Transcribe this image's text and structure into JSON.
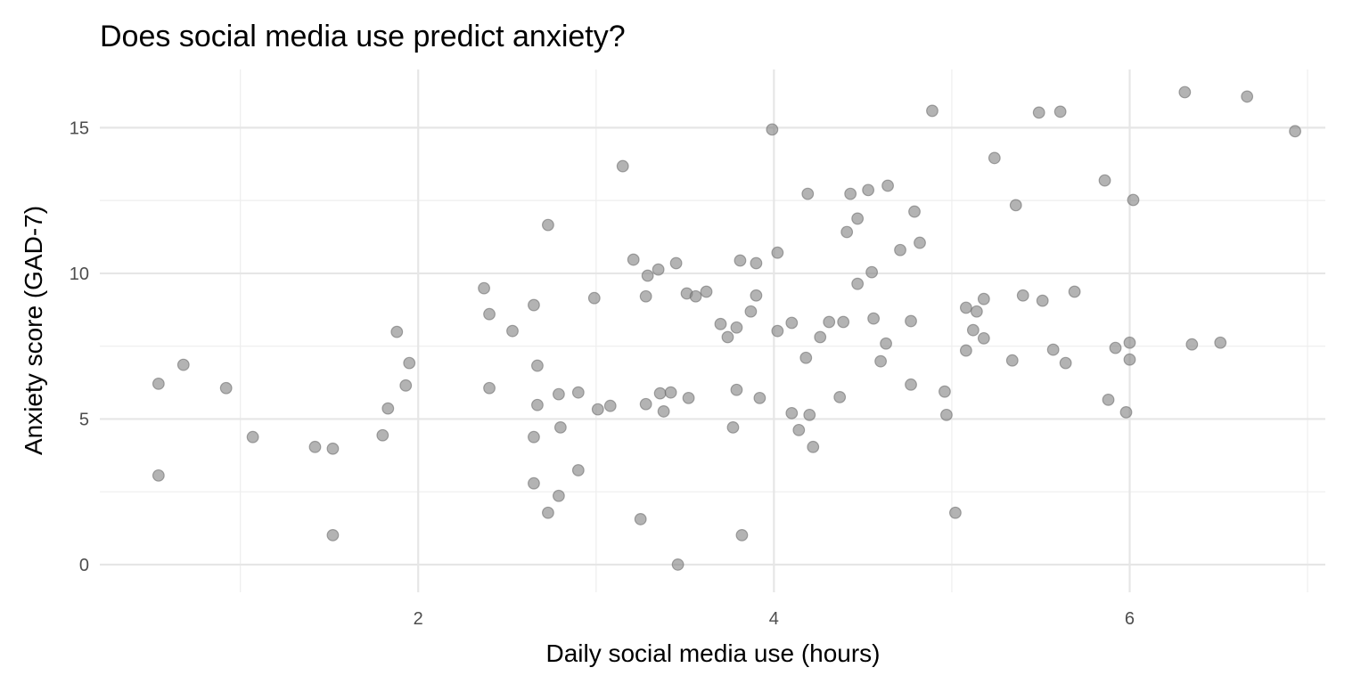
{
  "chart_data": {
    "type": "scatter",
    "title": "Does social media use predict anxiety?",
    "xlabel": "Daily social media use (hours)",
    "ylabel": "Anxiety score (GAD-7)",
    "xlim": [
      0.21,
      7.1
    ],
    "ylim": [
      -0.95,
      17.0
    ],
    "x_ticks": [
      2,
      4,
      6
    ],
    "x_tick_labels": [
      "2",
      "4",
      "6"
    ],
    "y_ticks": [
      0,
      5,
      10,
      15
    ],
    "y_tick_labels": [
      "0",
      "5",
      "10",
      "15"
    ],
    "grid": true,
    "point_color": "#808080",
    "points": [
      [
        0.54,
        6.21
      ],
      [
        0.54,
        3.06
      ],
      [
        0.68,
        6.86
      ],
      [
        0.92,
        6.06
      ],
      [
        1.07,
        4.38
      ],
      [
        1.42,
        4.04
      ],
      [
        1.52,
        3.98
      ],
      [
        1.52,
        1.01
      ],
      [
        1.8,
        4.44
      ],
      [
        1.83,
        5.36
      ],
      [
        1.88,
        7.99
      ],
      [
        1.93,
        6.15
      ],
      [
        1.95,
        6.92
      ],
      [
        2.37,
        9.49
      ],
      [
        2.4,
        8.6
      ],
      [
        2.4,
        6.06
      ],
      [
        2.53,
        8.02
      ],
      [
        2.65,
        8.91
      ],
      [
        2.67,
        6.83
      ],
      [
        2.67,
        5.48
      ],
      [
        2.65,
        4.38
      ],
      [
        2.65,
        2.79
      ],
      [
        2.73,
        11.66
      ],
      [
        2.73,
        1.78
      ],
      [
        2.79,
        5.85
      ],
      [
        2.8,
        4.71
      ],
      [
        2.79,
        2.36
      ],
      [
        2.9,
        5.91
      ],
      [
        2.9,
        3.24
      ],
      [
        2.99,
        9.15
      ],
      [
        3.01,
        5.33
      ],
      [
        3.08,
        5.45
      ],
      [
        3.15,
        13.68
      ],
      [
        3.21,
        10.47
      ],
      [
        3.25,
        1.56
      ],
      [
        3.28,
        9.21
      ],
      [
        3.29,
        9.92
      ],
      [
        3.28,
        5.51
      ],
      [
        3.35,
        10.13
      ],
      [
        3.36,
        5.88
      ],
      [
        3.38,
        5.26
      ],
      [
        3.42,
        5.91
      ],
      [
        3.45,
        10.35
      ],
      [
        3.46,
        0.0
      ],
      [
        3.52,
        5.72
      ],
      [
        3.51,
        9.31
      ],
      [
        3.56,
        9.21
      ],
      [
        3.62,
        9.37
      ],
      [
        3.7,
        8.26
      ],
      [
        3.74,
        7.81
      ],
      [
        3.77,
        4.71
      ],
      [
        3.79,
        8.14
      ],
      [
        3.79,
        6.0
      ],
      [
        3.81,
        10.44
      ],
      [
        3.82,
        1.01
      ],
      [
        3.87,
        8.69
      ],
      [
        3.9,
        9.24
      ],
      [
        3.9,
        10.35
      ],
      [
        3.92,
        5.72
      ],
      [
        3.99,
        14.94
      ],
      [
        4.02,
        8.02
      ],
      [
        4.02,
        10.71
      ],
      [
        4.1,
        5.2
      ],
      [
        4.1,
        8.3
      ],
      [
        4.14,
        4.62
      ],
      [
        4.18,
        7.1
      ],
      [
        4.19,
        12.73
      ],
      [
        4.2,
        5.14
      ],
      [
        4.22,
        4.04
      ],
      [
        4.26,
        7.81
      ],
      [
        4.31,
        8.33
      ],
      [
        4.37,
        5.75
      ],
      [
        4.39,
        8.33
      ],
      [
        4.41,
        11.42
      ],
      [
        4.43,
        12.73
      ],
      [
        4.47,
        11.88
      ],
      [
        4.47,
        9.64
      ],
      [
        4.53,
        12.86
      ],
      [
        4.55,
        10.04
      ],
      [
        4.56,
        8.45
      ],
      [
        4.6,
        6.98
      ],
      [
        4.63,
        7.59
      ],
      [
        4.64,
        13.01
      ],
      [
        4.71,
        10.8
      ],
      [
        4.77,
        8.36
      ],
      [
        4.77,
        6.18
      ],
      [
        4.79,
        12.12
      ],
      [
        4.82,
        11.05
      ],
      [
        4.89,
        15.58
      ],
      [
        4.96,
        5.94
      ],
      [
        4.97,
        5.14
      ],
      [
        5.02,
        1.78
      ],
      [
        5.08,
        8.82
      ],
      [
        5.08,
        7.35
      ],
      [
        5.12,
        8.05
      ],
      [
        5.14,
        8.69
      ],
      [
        5.18,
        9.12
      ],
      [
        5.18,
        7.77
      ],
      [
        5.24,
        13.96
      ],
      [
        5.34,
        7.01
      ],
      [
        5.36,
        12.34
      ],
      [
        5.4,
        9.24
      ],
      [
        5.49,
        15.52
      ],
      [
        5.51,
        9.06
      ],
      [
        5.57,
        7.38
      ],
      [
        5.61,
        15.55
      ],
      [
        5.64,
        6.92
      ],
      [
        5.69,
        9.37
      ],
      [
        5.86,
        13.19
      ],
      [
        5.88,
        5.66
      ],
      [
        5.92,
        7.44
      ],
      [
        5.98,
        5.23
      ],
      [
        6.0,
        7.04
      ],
      [
        6.0,
        7.62
      ],
      [
        6.02,
        12.52
      ],
      [
        6.31,
        16.22
      ],
      [
        6.35,
        7.56
      ],
      [
        6.51,
        7.62
      ],
      [
        6.66,
        16.07
      ],
      [
        6.93,
        14.88
      ]
    ]
  }
}
